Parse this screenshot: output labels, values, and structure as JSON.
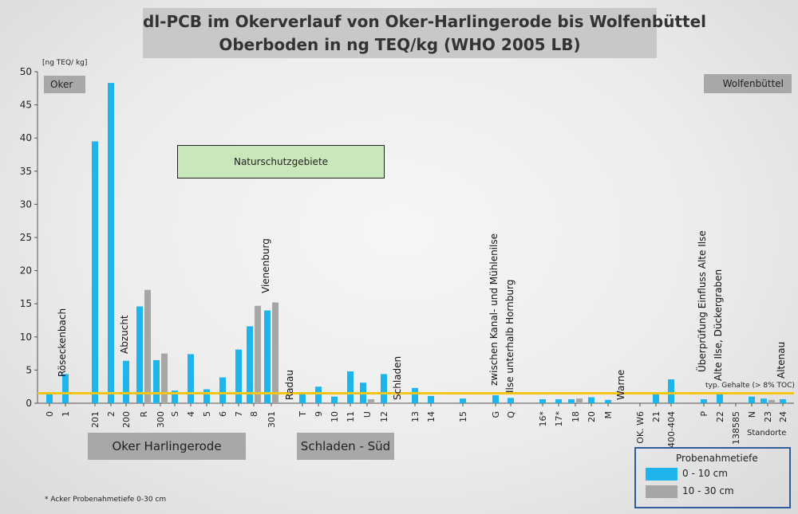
{
  "title": {
    "line1": "dl-PCB im Okerverlauf von Oker-Harlingerode bis Wolfenbüttel",
    "line2": "Oberboden in ng TEQ/kg (WHO 2005 LB)"
  },
  "labels": {
    "oker": "Oker",
    "wolfenbuettel": "Wolfenbüttel",
    "oker_harlingerode": "Oker Harlingerode",
    "schladen_sued": "Schladen - Süd",
    "naturschutz": "Naturschutzgebiete",
    "standorte": "Standorte",
    "typ_gehalte": "typ. Gehalte (> 8% TOC)",
    "footnote": "* Acker Probenahmetiefe 0-30 cm"
  },
  "legend": {
    "title": "Probenahmetiefe",
    "items": [
      {
        "label": "0 - 10 cm",
        "color": "#1fb4ec"
      },
      {
        "label": "10 - 30 cm",
        "color": "#a6a6a6"
      }
    ]
  },
  "colors": {
    "series1": "#1fb4ec",
    "series2": "#a6a6a6",
    "threshold": "#f5c518"
  },
  "chart_data": {
    "type": "bar",
    "title": "dl-PCB im Okerverlauf von Oker-Harlingerode bis Wolfenbüttel",
    "ylabel": "[ng TEQ/ kg]",
    "xlabel": "Standorte",
    "ylim": [
      0,
      50
    ],
    "yticks": [
      0,
      5,
      10,
      15,
      20,
      25,
      30,
      35,
      40,
      45,
      50
    ],
    "threshold": 1.5,
    "categories": [
      "0",
      "1",
      "201",
      "2",
      "200",
      "R",
      "300",
      "S",
      "4",
      "5",
      "6",
      "7",
      "8",
      "301",
      "T",
      "9",
      "10",
      "11",
      "U",
      "12",
      "13",
      "14",
      "15",
      "G",
      "Q",
      "16*",
      "17*",
      "18",
      "20",
      "M",
      "OK. W6",
      "21",
      "400-404",
      "P",
      "22",
      "138585",
      "N",
      "23",
      "24"
    ],
    "series": [
      {
        "name": "0 - 10 cm",
        "values": [
          1.4,
          4.4,
          39.5,
          48.3,
          6.4,
          14.6,
          6.5,
          1.9,
          7.4,
          2.1,
          3.9,
          8.1,
          11.6,
          14.0,
          1.4,
          2.5,
          1.0,
          4.8,
          3.1,
          4.4,
          2.3,
          1.1,
          0.7,
          1.2,
          0.8,
          0.6,
          0.6,
          0.6,
          0.9,
          0.5,
          null,
          1.4,
          3.6,
          0.6,
          1.6,
          null,
          1.0,
          0.7,
          0.6
        ]
      },
      {
        "name": "10 - 30 cm",
        "values": [
          null,
          null,
          null,
          null,
          null,
          17.1,
          7.5,
          null,
          null,
          null,
          null,
          null,
          14.7,
          15.2,
          null,
          null,
          null,
          null,
          0.6,
          null,
          null,
          null,
          null,
          null,
          null,
          null,
          null,
          0.7,
          null,
          null,
          null,
          null,
          null,
          null,
          null,
          null,
          null,
          0.5,
          null
        ]
      }
    ],
    "annotations": [
      {
        "text": "Röseckenbach",
        "category": "1"
      },
      {
        "text": "Abzucht",
        "category": "200"
      },
      {
        "text": "Vienenburg",
        "category": "8"
      },
      {
        "text": "Radau",
        "category": "T"
      },
      {
        "text": "Schladen",
        "category": "12"
      },
      {
        "text": "zwischen Kanal- und Mühlenilse",
        "category": "G"
      },
      {
        "text": "Ilse unterhalb Hornburg",
        "category": "Q"
      },
      {
        "text": "Warne",
        "category": "M"
      },
      {
        "text": "Überprüfung Einfluss Alte Ilse",
        "category": "P"
      },
      {
        "text": "Alte Ilse, Dückergraben",
        "category": "22"
      },
      {
        "text": "Altenau",
        "category": "24"
      }
    ]
  }
}
